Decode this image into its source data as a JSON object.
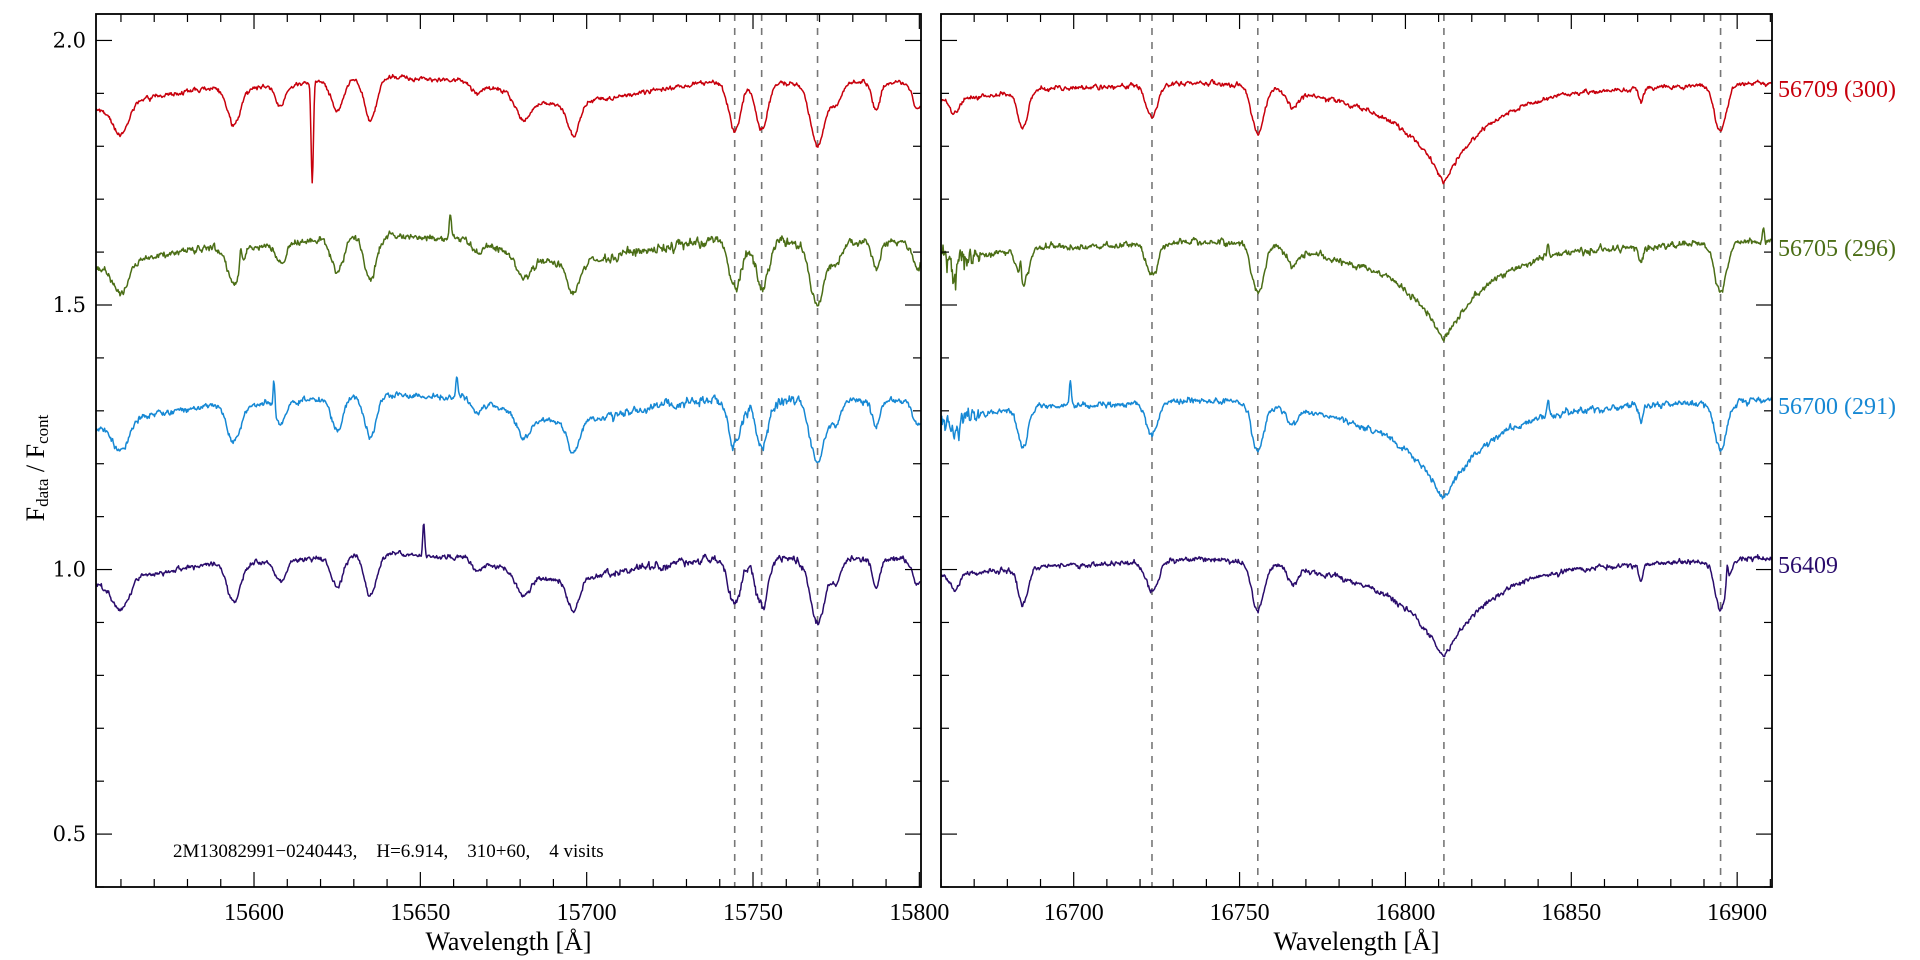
{
  "chart_data": {
    "type": "line",
    "ylabel": {
      "main": "F",
      "sub_num": "data",
      "sep": " / F",
      "sub_den": "cont"
    },
    "ylim": [
      0.4,
      2.05
    ],
    "yticks_major": [
      0.5,
      1.0,
      1.5,
      2.0
    ],
    "ytick_labels": [
      "0.5",
      "1.0",
      "1.5",
      "2.0"
    ],
    "ytick_minor_step": 0.1,
    "annotation": "2M13082991−0240443,    H=6.914,    310+60,    4 visits",
    "panels": [
      {
        "xlabel": "Wavelength [Å]",
        "xlim": [
          15552.5,
          15800.5
        ],
        "xticks_major": [
          15600,
          15650,
          15700,
          15750,
          15800
        ],
        "xtick_labels": [
          "15600",
          "15650",
          "15700",
          "15750",
          "15800"
        ],
        "xtick_minor_step": 10,
        "marked_lines": [
          15744.5,
          15752.6,
          15769.4
        ],
        "continuum_knots": [
          [
            15552,
            -0.03
          ],
          [
            15565,
            -0.01
          ],
          [
            15590,
            0.01
          ],
          [
            15640,
            0.03
          ],
          [
            15660,
            0.025
          ],
          [
            15690,
            -0.02
          ],
          [
            15740,
            0.02
          ],
          [
            15801,
            0.02
          ]
        ],
        "features": [
          [
            15560,
            0.06,
            2.5
          ],
          [
            15594,
            0.07,
            2.0
          ],
          [
            15608,
            0.04,
            1.5
          ],
          [
            15625,
            0.06,
            1.8
          ],
          [
            15635,
            0.08,
            1.8
          ],
          [
            15667,
            0.02,
            1.5
          ],
          [
            15681,
            0.04,
            2.0
          ],
          [
            15696,
            0.06,
            1.8
          ],
          [
            15744.5,
            0.09,
            1.8
          ],
          [
            15752.6,
            0.09,
            1.8
          ],
          [
            15769.4,
            0.12,
            2.2
          ],
          [
            15775,
            0.04,
            1.5
          ],
          [
            15787,
            0.05,
            1.2
          ],
          [
            15799.5,
            0.05,
            1.5
          ]
        ],
        "broad_features": []
      },
      {
        "xlabel": "Wavelength [Å]",
        "xlim": [
          16660,
          16910.5
        ],
        "xticks_major": [
          16700,
          16750,
          16800,
          16850,
          16900
        ],
        "xtick_labels": [
          "16700",
          "16750",
          "16800",
          "16850",
          "16900"
        ],
        "xtick_minor_step": 10,
        "marked_lines": [
          16723.6,
          16755.5,
          16811.6,
          16895
        ],
        "continuum_knots": [
          [
            16659,
            -0.01
          ],
          [
            16700,
            0.01
          ],
          [
            16740,
            0.02
          ],
          [
            16790,
            0.0
          ],
          [
            16860,
            0.01
          ],
          [
            16911,
            0.02
          ]
        ],
        "features": [
          [
            16664,
            0.03,
            1.5
          ],
          [
            16684.7,
            0.07,
            1.5
          ],
          [
            16723.6,
            0.06,
            1.8
          ],
          [
            16755.5,
            0.09,
            1.8
          ],
          [
            16766,
            0.03,
            1.5
          ],
          [
            16871,
            0.03,
            0.6
          ],
          [
            16895,
            0.09,
            1.8
          ]
        ],
        "broad_features": [
          [
            16811.6,
            0.17,
            14
          ]
        ]
      }
    ],
    "series": [
      {
        "name": "56709",
        "label": "56709 (300)",
        "color": "#c8000c",
        "offset": 0.9,
        "noise": 0.006,
        "extra_features": [
          [
            15617.5,
            0.19,
            0.35
          ]
        ],
        "spikes": []
      },
      {
        "name": "56705",
        "label": "56705 (296)",
        "color": "#4b6e16",
        "offset": 0.6,
        "noise": 0.009,
        "extra_features": [],
        "spikes": [
          [
            15596,
            0.04
          ],
          [
            15659,
            0.05
          ],
          [
            16684,
            0.04
          ],
          [
            16843,
            0.03
          ],
          [
            16908,
            0.03
          ]
        ]
      },
      {
        "name": "56700",
        "label": "56700 (291)",
        "color": "#1688d4",
        "offset": 0.3,
        "noise": 0.008,
        "extra_features": [],
        "spikes": [
          [
            15606,
            0.06
          ],
          [
            15661,
            0.04
          ],
          [
            16699,
            0.05
          ],
          [
            16843,
            0.03
          ]
        ]
      },
      {
        "name": "56409",
        "label": "56409",
        "color": "#2a0c6c",
        "offset": 0.0,
        "noise": 0.007,
        "extra_features": [],
        "spikes": [
          [
            15651,
            0.06
          ],
          [
            16897,
            0.04
          ]
        ]
      }
    ]
  }
}
